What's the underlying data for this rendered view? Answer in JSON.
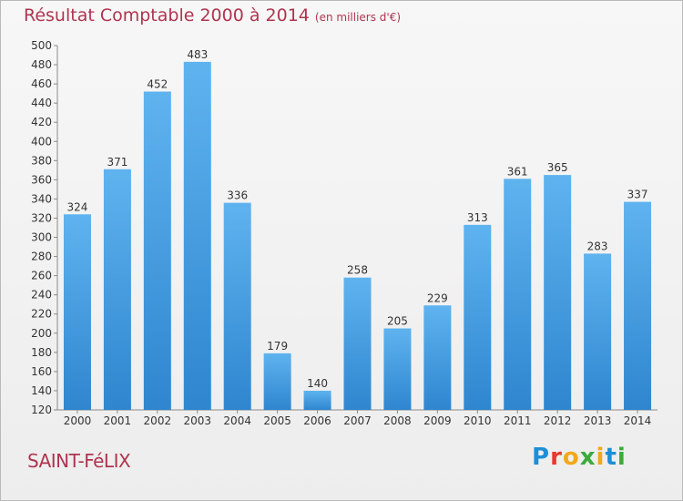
{
  "header": {
    "title": "Résultat Comptable 2000 à 2014",
    "unit": "(en milliers d'€)"
  },
  "commune": "SAINT-FéLIX",
  "logo": {
    "letters": [
      "P",
      "r",
      "o",
      "x",
      "i",
      "t",
      "i"
    ],
    "colors": [
      "#1e8fd6",
      "#e8392e",
      "#f3a81a",
      "#3caa3c",
      "#f3a81a",
      "#1e8fd6",
      "#3caa3c"
    ]
  },
  "chart_data": {
    "type": "bar",
    "title": "Résultat Comptable 2000 à 2014",
    "xlabel": "",
    "ylabel": "",
    "categories": [
      "2000",
      "2001",
      "2002",
      "2003",
      "2004",
      "2005",
      "2006",
      "2007",
      "2008",
      "2009",
      "2010",
      "2011",
      "2012",
      "2013",
      "2014"
    ],
    "values": [
      324,
      371,
      452,
      483,
      336,
      179,
      140,
      258,
      205,
      229,
      313,
      361,
      365,
      283,
      337
    ],
    "ylim": [
      120,
      500
    ],
    "yticks": [
      120,
      140,
      160,
      180,
      200,
      220,
      240,
      260,
      280,
      300,
      320,
      340,
      360,
      380,
      400,
      420,
      440,
      460,
      480,
      500
    ],
    "grid": false,
    "bar_color": "#4ea6e6"
  }
}
